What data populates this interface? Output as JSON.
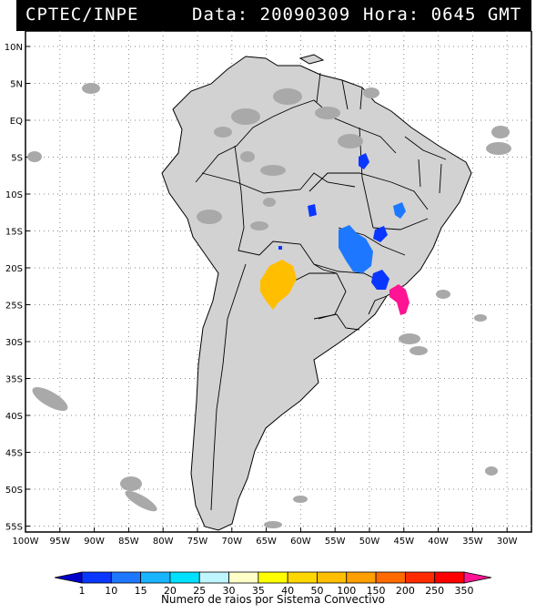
{
  "header": {
    "source": "CPTEC/INPE",
    "date_text": "Data: 20090309",
    "hour_text": "Hora: 0645 GMT"
  },
  "map": {
    "lat_labels": [
      "10N",
      "5N",
      "EQ",
      "5S",
      "10S",
      "15S",
      "20S",
      "25S",
      "30S",
      "35S",
      "40S",
      "45S",
      "50S",
      "55S"
    ],
    "lon_labels": [
      "100W",
      "95W",
      "90W",
      "85W",
      "80W",
      "75W",
      "70W",
      "65W",
      "60W",
      "55W",
      "50W",
      "45W",
      "40W",
      "35W",
      "30W"
    ],
    "lon_range": [
      -100,
      -27
    ],
    "lat_range": [
      -56,
      12
    ],
    "land_color": "#d2d2d2",
    "border_color": "#000000",
    "cloud_color": "#a9a9a9"
  },
  "legend": {
    "tick_values": [
      "1",
      "10",
      "15",
      "20",
      "25",
      "30",
      "35",
      "40",
      "50",
      "100",
      "150",
      "200",
      "250",
      "350"
    ],
    "colors": [
      "#0000c8",
      "#0a37ff",
      "#1e78ff",
      "#19b4ff",
      "#00e1ff",
      "#bff5ff",
      "#ffffc8",
      "#ffff00",
      "#ffd700",
      "#ffbf00",
      "#ff9f00",
      "#ff6a00",
      "#ff2a00",
      "#ff0000",
      "#ff1493"
    ],
    "title": "Numero de raios por Sistema Convectivo"
  }
}
